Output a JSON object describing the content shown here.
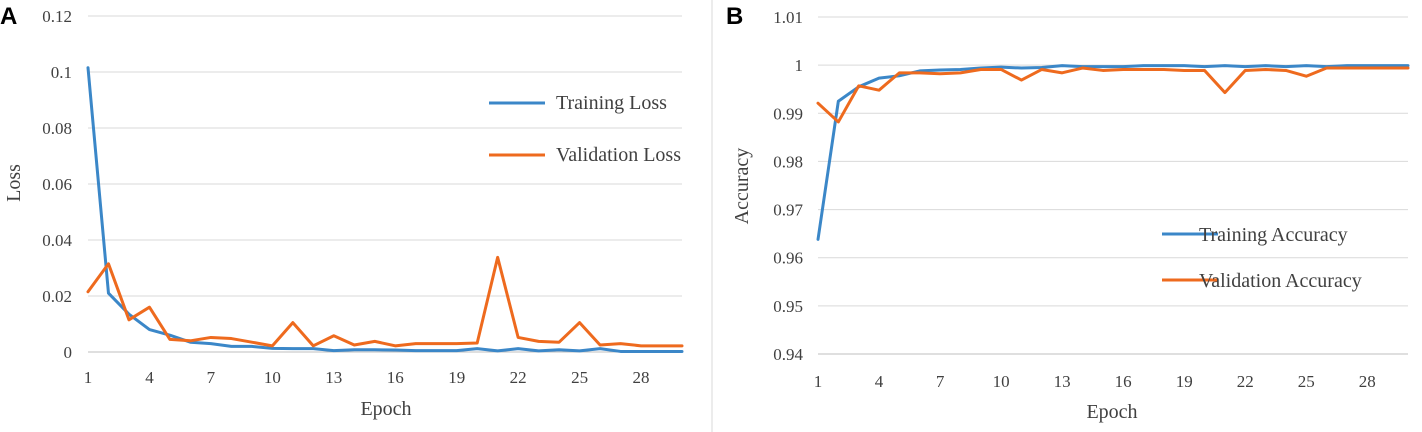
{
  "colors": {
    "training": "#3B87C8",
    "validation": "#EE6A1E"
  },
  "chart_data": [
    {
      "panel": "A",
      "type": "line",
      "title": "",
      "xlabel": "Epoch",
      "ylabel": "Loss",
      "x": [
        1,
        2,
        3,
        4,
        5,
        6,
        7,
        8,
        9,
        10,
        11,
        12,
        13,
        14,
        15,
        16,
        17,
        18,
        19,
        20,
        21,
        22,
        23,
        24,
        25,
        26,
        27,
        28,
        29,
        30
      ],
      "xticks": [
        "1",
        "4",
        "7",
        "10",
        "13",
        "16",
        "19",
        "22",
        "25",
        "28"
      ],
      "xtick_values": [
        1,
        4,
        7,
        10,
        13,
        16,
        19,
        22,
        25,
        28
      ],
      "yticks": [
        "0",
        "0.02",
        "0.04",
        "0.06",
        "0.08",
        "0.1",
        "0.12"
      ],
      "ytick_values": [
        0,
        0.02,
        0.04,
        0.06,
        0.08,
        0.1,
        0.12
      ],
      "ylim": [
        0,
        0.12
      ],
      "xlim": [
        1,
        30
      ],
      "grid": true,
      "legend_position": "right-upper",
      "series": [
        {
          "name": "Training Loss",
          "color": "#3B87C8",
          "values": [
            0.1015,
            0.021,
            0.0135,
            0.008,
            0.006,
            0.0035,
            0.003,
            0.002,
            0.002,
            0.0013,
            0.0012,
            0.0012,
            0.0005,
            0.0008,
            0.0008,
            0.0007,
            0.0005,
            0.0005,
            0.0005,
            0.0012,
            0.0004,
            0.0012,
            0.0004,
            0.0008,
            0.0004,
            0.0012,
            0.0002,
            0.0002,
            0.0002,
            0.0002
          ]
        },
        {
          "name": "Validation Loss",
          "color": "#EE6A1E",
          "values": [
            0.0215,
            0.0315,
            0.0115,
            0.016,
            0.0045,
            0.004,
            0.0052,
            0.0048,
            0.0035,
            0.0022,
            0.0105,
            0.0022,
            0.0058,
            0.0025,
            0.0038,
            0.0022,
            0.003,
            0.003,
            0.003,
            0.0032,
            0.0338,
            0.0052,
            0.0038,
            0.0035,
            0.0105,
            0.0025,
            0.003,
            0.0022,
            0.0022,
            0.0022
          ]
        }
      ]
    },
    {
      "panel": "B",
      "type": "line",
      "title": "",
      "xlabel": "Epoch",
      "ylabel": "Accuracy",
      "x": [
        1,
        2,
        3,
        4,
        5,
        6,
        7,
        8,
        9,
        10,
        11,
        12,
        13,
        14,
        15,
        16,
        17,
        18,
        19,
        20,
        21,
        22,
        23,
        24,
        25,
        26,
        27,
        28,
        29,
        30
      ],
      "xticks": [
        "1",
        "4",
        "7",
        "10",
        "13",
        "16",
        "19",
        "22",
        "25",
        "28"
      ],
      "xtick_values": [
        1,
        4,
        7,
        10,
        13,
        16,
        19,
        22,
        25,
        28
      ],
      "yticks": [
        "0.94",
        "0.95",
        "0.96",
        "0.97",
        "0.98",
        "0.99",
        "1",
        "1.01"
      ],
      "ytick_values": [
        0.94,
        0.95,
        0.96,
        0.97,
        0.98,
        0.99,
        1.0,
        1.01
      ],
      "ylim": [
        0.94,
        1.01
      ],
      "xlim": [
        1,
        30
      ],
      "grid": true,
      "legend_position": "right-lower",
      "series": [
        {
          "name": "Training Accuracy",
          "color": "#3B87C8",
          "values": [
            0.9638,
            0.9925,
            0.9955,
            0.9973,
            0.9978,
            0.9988,
            0.999,
            0.9991,
            0.9994,
            0.9996,
            0.9994,
            0.9995,
            0.9999,
            0.9997,
            0.9997,
            0.9997,
            0.9999,
            0.9999,
            0.9999,
            0.9997,
            0.9999,
            0.9997,
            0.9999,
            0.9997,
            0.9999,
            0.9997,
            0.9999,
            0.9999,
            0.9999,
            0.9999
          ]
        },
        {
          "name": "Validation Accuracy",
          "color": "#EE6A1E",
          "values": [
            0.9921,
            0.9882,
            0.9957,
            0.9948,
            0.9984,
            0.9984,
            0.9982,
            0.9984,
            0.9991,
            0.9991,
            0.9969,
            0.9991,
            0.9984,
            0.9994,
            0.9989,
            0.9991,
            0.9991,
            0.9991,
            0.9989,
            0.9989,
            0.9943,
            0.9989,
            0.9991,
            0.9989,
            0.9977,
            0.9994,
            0.9994,
            0.9994,
            0.9994,
            0.9994
          ]
        }
      ]
    }
  ]
}
